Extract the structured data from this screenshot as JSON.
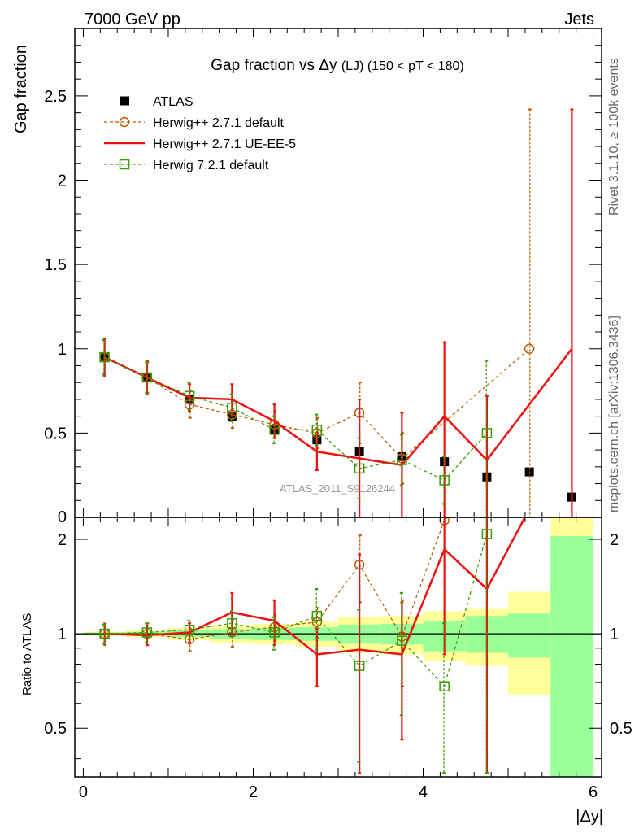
{
  "header": {
    "left": "7000 GeV pp",
    "right": "Jets",
    "side_top": "Rivet 3.1.10, ≥ 100k events",
    "side_bottom": "mcplots.cern.ch [arXiv:1306.3436]"
  },
  "chart_data": [
    {
      "type": "line",
      "panel": "main",
      "title_prefix": "Gap fraction vs",
      "title_var": "Δy",
      "title_suffix": "(LJ) (150 < pT < 180)",
      "ylabel": "Gap fraction",
      "watermark": "ATLAS_2011_S9126244",
      "xlim": [
        -0.1,
        6.1
      ],
      "ylim": [
        0,
        2.9
      ],
      "xticks": [
        0,
        2,
        4,
        6
      ],
      "yticks": [
        0.5,
        1,
        1.5,
        2,
        2.5
      ],
      "ytick_labels": [
        "0.5",
        "1",
        "1.5",
        "2",
        "2.5"
      ],
      "bottom_tick_label": "0",
      "x": [
        0.25,
        0.75,
        1.25,
        1.75,
        2.25,
        2.75,
        3.25,
        3.75,
        4.25,
        4.75,
        5.25,
        5.75
      ],
      "series": [
        {
          "name": "ATLAS",
          "style": "data",
          "color": "#000000",
          "values": [
            0.95,
            0.83,
            0.7,
            0.6,
            0.52,
            0.46,
            0.39,
            0.36,
            0.33,
            0.24,
            0.27,
            0.12
          ]
        },
        {
          "name": "Herwig++ 2.7.1 default",
          "style": "circle-dashed",
          "color": "#b85c00",
          "values": [
            0.95,
            0.83,
            0.67,
            0.61,
            0.55,
            0.5,
            0.62,
            0.35,
            null,
            null,
            1.0,
            null
          ],
          "err_low": [
            0.1,
            0.09,
            0.08,
            0.08,
            0.08,
            0.09,
            0.18,
            0.15,
            null,
            null,
            1.0,
            null
          ],
          "err_high": [
            0.1,
            0.09,
            0.08,
            0.08,
            0.08,
            0.09,
            0.18,
            0.15,
            null,
            null,
            1.42,
            null
          ]
        },
        {
          "name": "Herwig++ 2.7.1 UE-EE-5",
          "style": "line",
          "color": "#ee1111",
          "values": [
            0.95,
            0.83,
            0.71,
            0.7,
            0.57,
            0.39,
            0.35,
            0.31,
            0.6,
            0.34,
            0.66,
            1.0
          ],
          "err_low": [
            0.11,
            0.1,
            0.08,
            0.09,
            0.1,
            0.11,
            0.35,
            0.31,
            0.6,
            0.34,
            null,
            1.0
          ],
          "err_high": [
            0.11,
            0.1,
            0.08,
            0.09,
            0.1,
            0.11,
            0.35,
            0.31,
            0.44,
            0.38,
            null,
            1.42
          ],
          "line_x": [
            0.25,
            0.75,
            1.25,
            1.75,
            2.25,
            2.75,
            3.25,
            3.75,
            4.25,
            4.75,
            5.75
          ]
        },
        {
          "name": "Herwig 7.2.1 default",
          "style": "square-dashed",
          "color": "#3a9a00",
          "values": [
            0.95,
            0.83,
            0.72,
            0.65,
            0.52,
            0.52,
            0.29,
            0.34,
            0.22,
            0.5,
            null,
            null
          ],
          "err_low": [
            0.1,
            0.09,
            0.08,
            0.08,
            0.08,
            0.09,
            0.18,
            0.15,
            0.14,
            0.5,
            null,
            null
          ],
          "err_high": [
            0.1,
            0.09,
            0.08,
            0.08,
            0.08,
            0.09,
            0.18,
            0.15,
            0.14,
            0.43,
            null,
            null
          ]
        }
      ]
    },
    {
      "type": "line",
      "panel": "ratio",
      "ylabel": "Ratio to ATLAS",
      "xlabel": "|Δy|",
      "xlim": [
        -0.1,
        6.1
      ],
      "ylim": [
        0.35,
        2.35
      ],
      "xticks": [
        0,
        2,
        4,
        6
      ],
      "xtick_labels": [
        "0",
        "2",
        "4",
        "6"
      ],
      "yticks": [
        0.5,
        1,
        2
      ],
      "ytick_labels": [
        "0.5",
        "1",
        "2"
      ],
      "bands": {
        "edges": [
          0,
          0.5,
          1,
          1.5,
          2,
          2.5,
          3,
          3.5,
          4,
          4.5,
          5,
          5.5,
          6
        ],
        "green_low": [
          0.99,
          0.985,
          0.975,
          0.965,
          0.955,
          0.95,
          0.93,
          0.925,
          0.88,
          0.87,
          0.84,
          0.3
        ],
        "green_high": [
          1.01,
          1.015,
          1.025,
          1.035,
          1.045,
          1.05,
          1.07,
          1.075,
          1.1,
          1.14,
          1.16,
          2.05
        ],
        "yellow_low": [
          0.985,
          0.975,
          0.955,
          0.935,
          0.925,
          0.91,
          0.87,
          0.86,
          0.82,
          0.79,
          0.64,
          0.3
        ],
        "yellow_high": [
          1.015,
          1.025,
          1.045,
          1.065,
          1.075,
          1.09,
          1.13,
          1.14,
          1.18,
          1.2,
          1.36,
          2.45
        ]
      },
      "x": [
        0.25,
        0.75,
        1.25,
        1.75,
        2.25,
        2.75,
        3.25,
        3.75,
        4.25,
        4.75,
        5.25,
        5.75
      ],
      "series": [
        {
          "name": "Herwig++ 2.7.1 default",
          "style": "circle-dashed",
          "color": "#b85c00",
          "values": [
            1.0,
            1.0,
            0.96,
            1.01,
            1.05,
            1.09,
            1.66,
            0.98,
            2.3,
            3.0,
            null,
            null
          ],
          "err": [
            0.08,
            0.08,
            0.08,
            0.1,
            0.1,
            0.12,
            0.4,
            0.3,
            null,
            null,
            null,
            null
          ]
        },
        {
          "name": "Herwig++ 2.7.1 UE-EE-5",
          "style": "line",
          "color": "#ee1111",
          "values": [
            1.0,
            0.99,
            1.01,
            1.17,
            1.1,
            0.86,
            0.89,
            0.86,
            1.86,
            1.39,
            2.5,
            null
          ],
          "err": [
            0.07,
            0.07,
            0.07,
            0.18,
            0.18,
            0.18,
            0.9,
            0.4,
            1.0,
            1.4,
            null,
            null
          ]
        },
        {
          "name": "Herwig 7.2.1 default",
          "style": "square-dashed",
          "color": "#3a9a00",
          "values": [
            1.0,
            1.01,
            1.03,
            1.08,
            1.01,
            1.14,
            0.79,
            0.95,
            0.68,
            2.08,
            null,
            null
          ],
          "err": [
            0.07,
            0.07,
            0.07,
            0.1,
            0.12,
            0.25,
            0.4,
            0.4,
            0.4,
            1.8,
            null,
            null
          ]
        }
      ]
    }
  ]
}
